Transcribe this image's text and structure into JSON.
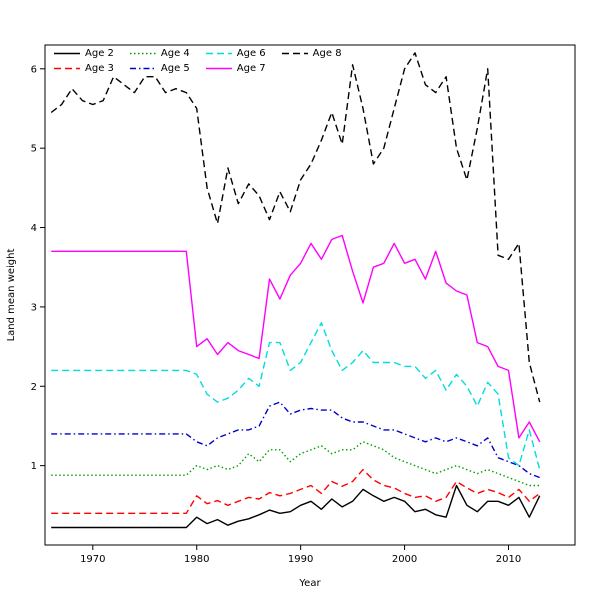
{
  "figure": {
    "background": "#ffffff"
  },
  "chart_data": {
    "type": "line",
    "title": "",
    "xlabel": "Year",
    "ylabel": "Land mean weight",
    "xlim": [
      1965.4,
      2016.4
    ],
    "ylim": [
      0,
      6.3
    ],
    "x_ticks": [
      1970,
      1980,
      1990,
      2000,
      2010
    ],
    "y_ticks": [
      1,
      2,
      3,
      4,
      5,
      6
    ],
    "grid": false,
    "legend_position": "top-left",
    "legend_columns": 4,
    "x": [
      1966,
      1967,
      1968,
      1969,
      1970,
      1971,
      1972,
      1973,
      1974,
      1975,
      1976,
      1977,
      1978,
      1979,
      1980,
      1981,
      1982,
      1983,
      1984,
      1985,
      1986,
      1987,
      1988,
      1989,
      1990,
      1991,
      1992,
      1993,
      1994,
      1995,
      1996,
      1997,
      1998,
      1999,
      2000,
      2001,
      2002,
      2003,
      2004,
      2005,
      2006,
      2007,
      2008,
      2009,
      2010,
      2011,
      2012,
      2013
    ],
    "series": [
      {
        "name": "Age 2",
        "color": "#000000",
        "style": "solid",
        "values": [
          0.22,
          0.22,
          0.22,
          0.22,
          0.22,
          0.22,
          0.22,
          0.22,
          0.22,
          0.22,
          0.22,
          0.22,
          0.22,
          0.22,
          0.35,
          0.27,
          0.32,
          0.25,
          0.3,
          0.33,
          0.38,
          0.44,
          0.4,
          0.42,
          0.5,
          0.55,
          0.45,
          0.58,
          0.48,
          0.55,
          0.7,
          0.62,
          0.55,
          0.6,
          0.55,
          0.42,
          0.45,
          0.38,
          0.35,
          0.75,
          0.5,
          0.42,
          0.55,
          0.55,
          0.5,
          0.6,
          0.35,
          0.62
        ]
      },
      {
        "name": "Age 3",
        "color": "#ff0000",
        "style": "dashed",
        "values": [
          0.4,
          0.4,
          0.4,
          0.4,
          0.4,
          0.4,
          0.4,
          0.4,
          0.4,
          0.4,
          0.4,
          0.4,
          0.4,
          0.4,
          0.62,
          0.52,
          0.56,
          0.5,
          0.55,
          0.6,
          0.58,
          0.66,
          0.62,
          0.65,
          0.7,
          0.75,
          0.65,
          0.8,
          0.74,
          0.8,
          0.95,
          0.82,
          0.75,
          0.72,
          0.65,
          0.6,
          0.62,
          0.55,
          0.6,
          0.8,
          0.72,
          0.65,
          0.7,
          0.66,
          0.6,
          0.7,
          0.55,
          0.65
        ]
      },
      {
        "name": "Age 4",
        "color": "#00a000",
        "style": "dotted",
        "values": [
          0.88,
          0.88,
          0.88,
          0.88,
          0.88,
          0.88,
          0.88,
          0.88,
          0.88,
          0.88,
          0.88,
          0.88,
          0.88,
          0.88,
          1.0,
          0.95,
          1.0,
          0.95,
          1.0,
          1.15,
          1.05,
          1.2,
          1.2,
          1.05,
          1.15,
          1.2,
          1.25,
          1.15,
          1.2,
          1.2,
          1.3,
          1.25,
          1.2,
          1.1,
          1.05,
          1.0,
          0.95,
          0.9,
          0.95,
          1.0,
          0.95,
          0.9,
          0.95,
          0.9,
          0.85,
          0.8,
          0.75,
          0.75
        ]
      },
      {
        "name": "Age 5",
        "color": "#0000cd",
        "style": "dashdot",
        "values": [
          1.4,
          1.4,
          1.4,
          1.4,
          1.4,
          1.4,
          1.4,
          1.4,
          1.4,
          1.4,
          1.4,
          1.4,
          1.4,
          1.4,
          1.3,
          1.25,
          1.35,
          1.4,
          1.45,
          1.45,
          1.5,
          1.75,
          1.8,
          1.65,
          1.7,
          1.72,
          1.7,
          1.7,
          1.6,
          1.55,
          1.55,
          1.5,
          1.45,
          1.45,
          1.4,
          1.35,
          1.3,
          1.35,
          1.3,
          1.35,
          1.3,
          1.25,
          1.35,
          1.1,
          1.05,
          1.0,
          0.9,
          0.85
        ]
      },
      {
        "name": "Age 6",
        "color": "#00dddd",
        "style": "dashed",
        "values": [
          2.2,
          2.2,
          2.2,
          2.2,
          2.2,
          2.2,
          2.2,
          2.2,
          2.2,
          2.2,
          2.2,
          2.2,
          2.2,
          2.2,
          2.15,
          1.9,
          1.8,
          1.85,
          1.95,
          2.1,
          2.0,
          2.55,
          2.55,
          2.2,
          2.3,
          2.55,
          2.8,
          2.45,
          2.2,
          2.3,
          2.45,
          2.3,
          2.3,
          2.3,
          2.25,
          2.25,
          2.1,
          2.2,
          1.95,
          2.15,
          2.0,
          1.75,
          2.05,
          1.9,
          1.1,
          1.0,
          1.45,
          0.95
        ]
      },
      {
        "name": "Age 7",
        "color": "#ff00ff",
        "style": "solid",
        "values": [
          3.7,
          3.7,
          3.7,
          3.7,
          3.7,
          3.7,
          3.7,
          3.7,
          3.7,
          3.7,
          3.7,
          3.7,
          3.7,
          3.7,
          2.5,
          2.6,
          2.4,
          2.55,
          2.45,
          2.4,
          2.35,
          3.35,
          3.1,
          3.4,
          3.55,
          3.8,
          3.6,
          3.85,
          3.9,
          3.45,
          3.05,
          3.5,
          3.55,
          3.8,
          3.55,
          3.6,
          3.35,
          3.7,
          3.3,
          3.2,
          3.15,
          2.55,
          2.5,
          2.25,
          2.2,
          1.35,
          1.55,
          1.3
        ]
      },
      {
        "name": "Age 8",
        "color": "#000000",
        "style": "dashed",
        "values": [
          5.45,
          5.55,
          5.75,
          5.6,
          5.55,
          5.6,
          5.9,
          5.8,
          5.7,
          5.9,
          5.9,
          5.7,
          5.75,
          5.7,
          5.5,
          4.5,
          4.05,
          4.75,
          4.3,
          4.55,
          4.4,
          4.1,
          4.45,
          4.2,
          4.6,
          4.8,
          5.1,
          5.45,
          5.05,
          6.05,
          5.5,
          4.8,
          5.0,
          5.5,
          6.0,
          6.2,
          5.8,
          5.7,
          5.9,
          5.0,
          4.6,
          5.25,
          6.0,
          3.65,
          3.6,
          3.8,
          2.3,
          1.8
        ]
      }
    ]
  }
}
